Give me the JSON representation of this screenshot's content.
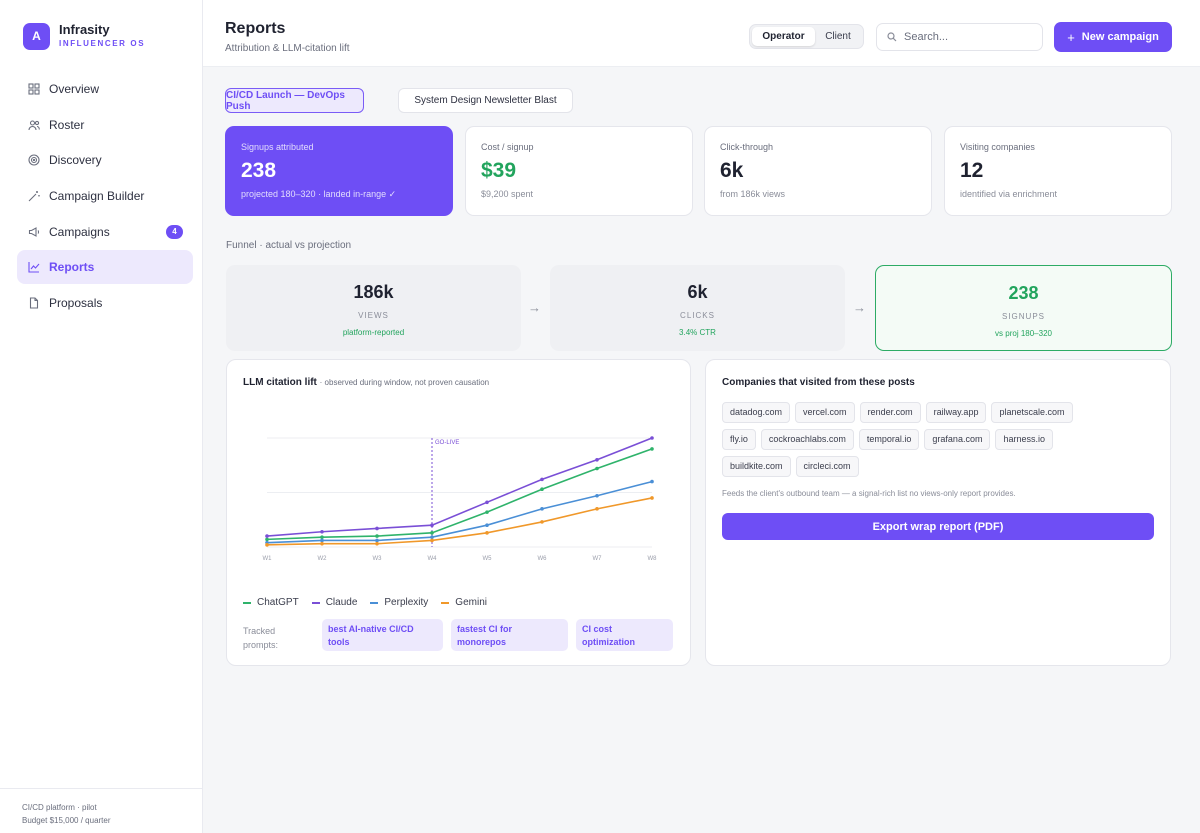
{
  "brand": {
    "logo": "A",
    "name": "Infrasity",
    "sub": "INFLUENCER OS"
  },
  "sidebar": {
    "items": [
      {
        "label": "Overview",
        "icon": "grid-icon"
      },
      {
        "label": "Roster",
        "icon": "users-icon"
      },
      {
        "label": "Discovery",
        "icon": "target-icon"
      },
      {
        "label": "Campaign Builder",
        "icon": "wand-icon"
      },
      {
        "label": "Campaigns",
        "icon": "megaphone-icon",
        "badge": "4"
      },
      {
        "label": "Reports",
        "icon": "chart-line-icon",
        "active": true
      },
      {
        "label": "Proposals",
        "icon": "file-icon"
      }
    ],
    "footer": {
      "line1": "CI/CD platform · pilot",
      "line2": "Budget $15,000 / quarter"
    }
  },
  "header": {
    "title": "Reports",
    "subtitle": "Attribution & LLM-citation lift",
    "toggle": {
      "active": "Operator",
      "inactive": "Client"
    },
    "search_placeholder": "Search...",
    "new_campaign": "New campaign",
    "new_campaign_icon": "+"
  },
  "campaign_tabs": [
    "CI/CD Launch — DevOps Push",
    "System Design Newsletter Blast"
  ],
  "kpis": [
    {
      "label": "Signups attributed",
      "value": "238",
      "sub": "projected 180–320 · landed in-range ✓"
    },
    {
      "label": "Cost / signup",
      "value": "$39",
      "sub": "$9,200 spent"
    },
    {
      "label": "Click-through",
      "value": "6k",
      "sub": "from 186k views"
    },
    {
      "label": "Visiting companies",
      "value": "12",
      "sub": "identified via enrichment"
    }
  ],
  "funnel_title": "Funnel · actual vs projection",
  "funnel": [
    {
      "value": "186k",
      "label": "VIEWS",
      "note": "platform-reported"
    },
    {
      "value": "6k",
      "label": "CLICKS",
      "note": "3.4% CTR"
    },
    {
      "value": "238",
      "label": "SIGNUPS",
      "note": "vs proj 180–320"
    }
  ],
  "llm_panel": {
    "title": "LLM citation lift",
    "note": "· observed during window, not proven causation",
    "tracked_label": "Tracked prompts:",
    "prompts": [
      "best AI-native CI/CD tools",
      "fastest CI for monorepos",
      "CI cost optimization"
    ]
  },
  "chart_data": {
    "type": "line",
    "x": [
      "W1",
      "W2",
      "W3",
      "W4",
      "W5",
      "W6",
      "W7",
      "W8"
    ],
    "ylim": [
      0,
      100
    ],
    "annotation": {
      "label": "GO-LIVE",
      "x": "W4"
    },
    "series": [
      {
        "name": "ChatGPT",
        "color": "#2fb36b",
        "values": [
          7,
          9,
          10,
          13,
          32,
          53,
          72,
          90
        ]
      },
      {
        "name": "Claude",
        "color": "#7a4fd6",
        "values": [
          10,
          14,
          17,
          20,
          41,
          62,
          80,
          100
        ]
      },
      {
        "name": "Perplexity",
        "color": "#4a8fd6",
        "values": [
          4,
          6,
          6,
          9,
          20,
          35,
          47,
          60
        ]
      },
      {
        "name": "Gemini",
        "color": "#f0982a",
        "values": [
          2,
          3,
          3,
          6,
          13,
          23,
          35,
          45
        ]
      }
    ]
  },
  "companies_panel": {
    "title": "Companies that visited from these posts",
    "chips": [
      "datadog.com",
      "vercel.com",
      "render.com",
      "railway.app",
      "planetscale.com",
      "fly.io",
      "cockroachlabs.com",
      "temporal.io",
      "grafana.com",
      "harness.io",
      "buildkite.com",
      "circleci.com"
    ],
    "note": "Feeds the client's outbound team — a signal-rich list no views-only report provides.",
    "export_label": "Export wrap report (PDF)"
  }
}
